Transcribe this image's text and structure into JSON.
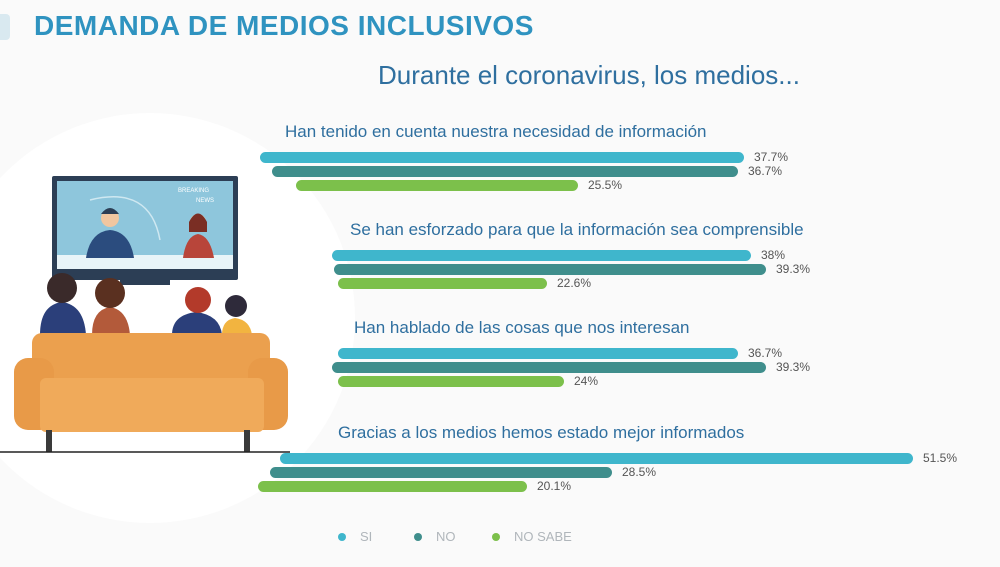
{
  "header": {
    "title": "DEMANDA DE MEDIOS INCLUSIVOS",
    "subtitle": "Durante el coronavirus, los medios..."
  },
  "illustration": {
    "tv_text_line1": "BREAKING",
    "tv_text_line2": "NEWS"
  },
  "colors": {
    "si": "#3fb6cc",
    "no": "#3f8e8c",
    "no_sabe": "#7cc04b",
    "question_text": "#2f6f9f",
    "value_text": "#555555"
  },
  "chart_data": {
    "type": "bar",
    "orientation": "horizontal",
    "categories": [
      "Han tenido en cuenta nuestra necesidad de información",
      "Se han esforzado para que la información sea comprensible",
      "Han hablado de las cosas que nos interesan",
      "Gracias a los medios hemos estado mejor informados"
    ],
    "series": [
      {
        "name": "SI",
        "values": [
          37.7,
          38,
          36.7,
          51.5
        ],
        "labels": [
          "37.7%",
          "38%",
          "36.7%",
          "51.5%"
        ]
      },
      {
        "name": "NO",
        "values": [
          36.7,
          39.3,
          39.3,
          28.5
        ],
        "labels": [
          "36.7%",
          "39.3%",
          "39.3%",
          "28.5%"
        ]
      },
      {
        "name": "NO SABE",
        "values": [
          25.5,
          22.6,
          24,
          20.1
        ],
        "labels": [
          "25.5%",
          "22.6%",
          "24%",
          "20.1%"
        ]
      }
    ],
    "unit": "%",
    "legend_position": "bottom"
  }
}
